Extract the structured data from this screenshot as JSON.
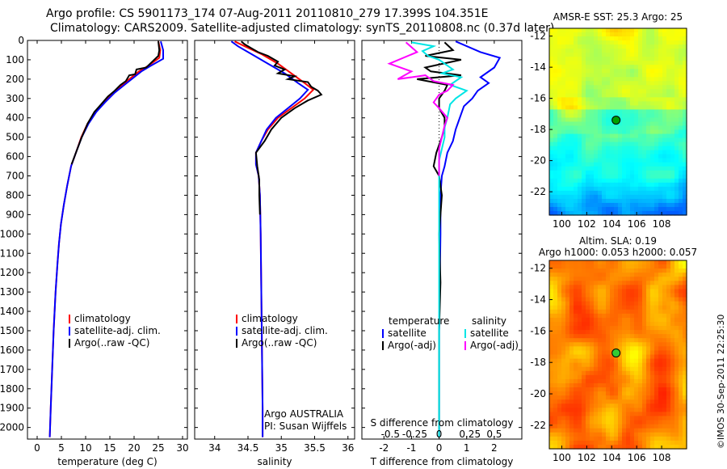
{
  "header": {
    "line1": "Argo profile: CS 5901173_174 07-Aug-2011 20110810_279 17.399S 104.351E",
    "line2": "Climatology: CARS2009. Satellite-adjusted climatology: synTS_20110808.nc (0.37d later)"
  },
  "colors": {
    "climatology": "#ff0000",
    "satellite": "#0000ff",
    "argo": "#000000",
    "satellite_s": "#00e5e5",
    "argo_s": "#ff00ff"
  },
  "chart_data": [
    {
      "type": "line",
      "id": "temp",
      "xlabel": "temperature (deg C)",
      "ylabel": "",
      "xlim": [
        -2,
        31
      ],
      "ylim": [
        2060,
        0
      ],
      "xticks": [
        0,
        5,
        10,
        15,
        20,
        25,
        30
      ],
      "yticks": [
        0,
        100,
        200,
        300,
        400,
        500,
        600,
        700,
        800,
        900,
        1000,
        1100,
        1200,
        1300,
        1400,
        1500,
        1600,
        1700,
        1800,
        1900,
        2000
      ],
      "legend": [
        "climatology",
        "satellite-adj. clim.",
        "Argo(..raw -QC)"
      ],
      "series": [
        {
          "name": "climatology",
          "color": "climatology",
          "points": [
            [
              25.0,
              5
            ],
            [
              25.4,
              50
            ],
            [
              25.2,
              90
            ],
            [
              23,
              130
            ],
            [
              21,
              160
            ],
            [
              19.5,
              190
            ],
            [
              17.6,
              230
            ],
            [
              15.8,
              270
            ],
            [
              13.8,
              320
            ],
            [
              12,
              370
            ],
            [
              10.4,
              430
            ],
            [
              9.1,
              500
            ],
            [
              8,
              580
            ],
            [
              7.0,
              650
            ],
            [
              6.2,
              750
            ],
            [
              5.5,
              850
            ],
            [
              4.9,
              950
            ],
            [
              4.5,
              1050
            ],
            [
              4.2,
              1150
            ],
            [
              3.8,
              1300
            ],
            [
              3.4,
              1500
            ],
            [
              3.1,
              1700
            ],
            [
              2.8,
              1900
            ],
            [
              2.6,
              2050
            ]
          ]
        },
        {
          "name": "satellite-adj. clim.",
          "color": "satellite",
          "points": [
            [
              25.5,
              5
            ],
            [
              26.0,
              50
            ],
            [
              26.0,
              95
            ],
            [
              23.5,
              130
            ],
            [
              21.5,
              160
            ],
            [
              20.0,
              190
            ],
            [
              18.0,
              230
            ],
            [
              16.0,
              270
            ],
            [
              14.0,
              320
            ],
            [
              12.2,
              370
            ],
            [
              10.6,
              430
            ],
            [
              9.2,
              500
            ],
            [
              8,
              580
            ],
            [
              7.0,
              650
            ],
            [
              6.2,
              750
            ],
            [
              5.5,
              850
            ],
            [
              4.9,
              950
            ],
            [
              4.5,
              1050
            ],
            [
              4.2,
              1150
            ],
            [
              3.8,
              1300
            ],
            [
              3.4,
              1500
            ],
            [
              3.1,
              1700
            ],
            [
              2.8,
              1900
            ],
            [
              2.6,
              2050
            ]
          ]
        },
        {
          "name": "Argo(..raw -QC)",
          "color": "argo",
          "points": [
            [
              25.0,
              5
            ],
            [
              25.2,
              50
            ],
            [
              25.0,
              80
            ],
            [
              22.5,
              140
            ],
            [
              20.5,
              150
            ],
            [
              20.2,
              175
            ],
            [
              19.0,
              180
            ],
            [
              18.3,
              210
            ],
            [
              17.2,
              230
            ],
            [
              16.0,
              260
            ],
            [
              14.6,
              290
            ],
            [
              13.2,
              330
            ],
            [
              11.8,
              370
            ],
            [
              10.4,
              430
            ],
            [
              9.2,
              500
            ],
            [
              8,
              580
            ],
            [
              7.1,
              640
            ]
          ]
        }
      ]
    },
    {
      "type": "line",
      "id": "sal",
      "xlabel": "salinity",
      "ylabel": "",
      "xlim": [
        33.7,
        36.1
      ],
      "ylim": [
        2060,
        0
      ],
      "xticks": [
        34,
        34.5,
        35,
        35.5,
        36
      ],
      "legend": [
        "climatology",
        "satellite-adj. clim.",
        "Argo(..raw -QC)"
      ],
      "annotation": [
        "Argo AUSTRALIA",
        "PI: Susan Wijffels"
      ],
      "series": [
        {
          "name": "climatology",
          "color": "climatology",
          "points": [
            [
              34.3,
              5
            ],
            [
              34.45,
              30
            ],
            [
              34.7,
              70
            ],
            [
              34.95,
              120
            ],
            [
              35.15,
              170
            ],
            [
              35.35,
              220
            ],
            [
              35.48,
              255
            ],
            [
              35.35,
              300
            ],
            [
              35.15,
              350
            ],
            [
              34.95,
              400
            ],
            [
              34.8,
              460
            ],
            [
              34.7,
              520
            ],
            [
              34.62,
              580
            ],
            [
              34.62,
              640
            ],
            [
              34.66,
              700
            ],
            [
              34.68,
              800
            ],
            [
              34.69,
              1000
            ],
            [
              34.7,
              1300
            ],
            [
              34.71,
              1600
            ],
            [
              34.72,
              1900
            ],
            [
              34.72,
              2050
            ]
          ]
        },
        {
          "name": "satellite-adj. clim.",
          "color": "satellite",
          "points": [
            [
              34.25,
              5
            ],
            [
              34.35,
              30
            ],
            [
              34.55,
              70
            ],
            [
              34.8,
              120
            ],
            [
              35.05,
              170
            ],
            [
              35.25,
              220
            ],
            [
              35.4,
              255
            ],
            [
              35.28,
              300
            ],
            [
              35.1,
              350
            ],
            [
              34.92,
              400
            ],
            [
              34.78,
              460
            ],
            [
              34.7,
              520
            ],
            [
              34.62,
              580
            ],
            [
              34.62,
              640
            ],
            [
              34.66,
              700
            ],
            [
              34.68,
              800
            ],
            [
              34.69,
              1000
            ],
            [
              34.7,
              1300
            ],
            [
              34.71,
              1600
            ],
            [
              34.72,
              1900
            ],
            [
              34.72,
              2050
            ]
          ]
        },
        {
          "name": "Argo(..raw -QC)",
          "color": "argo",
          "points": [
            [
              34.4,
              5
            ],
            [
              34.45,
              20
            ],
            [
              34.55,
              40
            ],
            [
              34.65,
              60
            ],
            [
              34.8,
              80
            ],
            [
              34.95,
              110
            ],
            [
              34.9,
              130
            ],
            [
              35.05,
              150
            ],
            [
              34.95,
              170
            ],
            [
              35.2,
              185
            ],
            [
              35.1,
              200
            ],
            [
              35.4,
              215
            ],
            [
              35.45,
              240
            ],
            [
              35.55,
              260
            ],
            [
              35.6,
              280
            ],
            [
              35.4,
              310
            ],
            [
              35.2,
              350
            ],
            [
              35.0,
              400
            ],
            [
              34.85,
              460
            ],
            [
              34.75,
              520
            ],
            [
              34.62,
              580
            ],
            [
              34.64,
              650
            ],
            [
              34.67,
              720
            ],
            [
              34.67,
              800
            ],
            [
              34.68,
              900
            ]
          ]
        }
      ]
    },
    {
      "type": "line",
      "id": "diff",
      "xlabel": "T difference from climatology",
      "ylabel": "",
      "xlabel2": "S difference from climatology",
      "xlim": [
        -2.8,
        3.0
      ],
      "ylim": [
        2060,
        0
      ],
      "xticks": [
        -2,
        -1,
        0,
        1,
        2
      ],
      "xticks_s": [
        "-0.5",
        "-0.25",
        "0",
        "0.25",
        "0.5"
      ],
      "legend_titles": [
        "temperature",
        "salinity"
      ],
      "legend": [
        "satellite",
        "Argo(-adj)",
        "satellite",
        "Argo(-adj)"
      ],
      "series": [
        {
          "name": "satellite",
          "color": "satellite",
          "points": [
            [
              0.6,
              5
            ],
            [
              1.5,
              60
            ],
            [
              2.2,
              90
            ],
            [
              2.0,
              140
            ],
            [
              1.5,
              190
            ],
            [
              1.8,
              220
            ],
            [
              1.4,
              260
            ],
            [
              1.2,
              300
            ],
            [
              0.9,
              340
            ],
            [
              0.8,
              380
            ],
            [
              0.7,
              420
            ],
            [
              0.6,
              460
            ],
            [
              0.5,
              520
            ],
            [
              0.3,
              580
            ],
            [
              0.2,
              650
            ],
            [
              0.1,
              700
            ],
            [
              0.05,
              800
            ],
            [
              0.05,
              1000
            ],
            [
              0.0,
              1500
            ],
            [
              0.0,
              2050
            ]
          ]
        },
        {
          "name": "Argo(-adj)",
          "color": "argo",
          "points": [
            [
              0.2,
              10
            ],
            [
              0.5,
              50
            ],
            [
              -0.5,
              80
            ],
            [
              0.8,
              100
            ],
            [
              -0.5,
              140
            ],
            [
              -0.3,
              160
            ],
            [
              0.8,
              180
            ],
            [
              -0.8,
              200
            ],
            [
              0.3,
              230
            ],
            [
              0.2,
              260
            ],
            [
              0.0,
              300
            ],
            [
              0.0,
              350
            ],
            [
              0.2,
              400
            ],
            [
              0.2,
              450
            ],
            [
              0.1,
              500
            ],
            [
              -0.1,
              580
            ],
            [
              -0.2,
              650
            ],
            [
              0.0,
              700
            ],
            [
              0.1,
              800
            ],
            [
              0.0,
              1000
            ],
            [
              0.05,
              1250
            ],
            [
              0.0,
              1500
            ],
            [
              0.0,
              2050
            ]
          ]
        },
        {
          "name": "satellite",
          "color": "satellite_s",
          "points": [
            [
              -1.0,
              10
            ],
            [
              -0.2,
              30
            ],
            [
              -0.6,
              55
            ],
            [
              -0.4,
              80
            ],
            [
              0.0,
              100
            ],
            [
              0.3,
              130
            ],
            [
              0.5,
              150
            ],
            [
              0.1,
              170
            ],
            [
              0.8,
              190
            ],
            [
              0.4,
              230
            ],
            [
              1.0,
              260
            ],
            [
              0.6,
              300
            ],
            [
              0.4,
              330
            ],
            [
              0.3,
              400
            ],
            [
              0.2,
              450
            ],
            [
              0.2,
              500
            ],
            [
              0.1,
              560
            ],
            [
              0.0,
              620
            ],
            [
              0.0,
              700
            ],
            [
              0.0,
              800
            ],
            [
              0.0,
              1000
            ],
            [
              0.0,
              1500
            ],
            [
              0.0,
              2050
            ]
          ]
        },
        {
          "name": "Argo(-adj)",
          "color": "argo_s",
          "points": [
            [
              -1.2,
              10
            ],
            [
              -0.8,
              60
            ],
            [
              -1.8,
              120
            ],
            [
              -1.0,
              160
            ],
            [
              -1.5,
              200
            ],
            [
              -0.5,
              180
            ],
            [
              -0.2,
              210
            ],
            [
              0.5,
              230
            ],
            [
              0.3,
              260
            ],
            [
              0.0,
              280
            ],
            [
              -0.2,
              320
            ],
            [
              0.0,
              350
            ],
            [
              0.3,
              400
            ],
            [
              0.2,
              440
            ],
            [
              0.1,
              500
            ],
            [
              0.0,
              560
            ],
            [
              0.0,
              620
            ],
            [
              0.0,
              700
            ]
          ]
        }
      ]
    },
    {
      "type": "heatmap",
      "id": "sst",
      "title": "AMSR-E SST: 25.3  Argo: 25",
      "xlim": [
        99,
        110
      ],
      "ylim": [
        -23.5,
        -11.5
      ],
      "xticks": [
        100,
        102,
        104,
        106,
        108
      ],
      "yticks": [
        -12,
        -14,
        -16,
        -18,
        -20,
        -22
      ],
      "marker": {
        "lon": 104.35,
        "lat": -17.4,
        "color": "#00a000"
      }
    },
    {
      "type": "heatmap",
      "id": "sla",
      "title": "Altim. SLA: 0.19",
      "subtitle": "Argo h1000: 0.053 h2000: 0.057",
      "xlim": [
        99,
        110
      ],
      "ylim": [
        -23.5,
        -11.5
      ],
      "xticks": [
        100,
        102,
        104,
        106,
        108
      ],
      "yticks": [
        -12,
        -14,
        -16,
        -18,
        -20,
        -22
      ],
      "marker": {
        "lon": 104.35,
        "lat": -17.4,
        "color": "#33cc33"
      }
    }
  ],
  "footer": {
    "stamp": "©IMOS 30-Sep-2011 22:25:30"
  }
}
